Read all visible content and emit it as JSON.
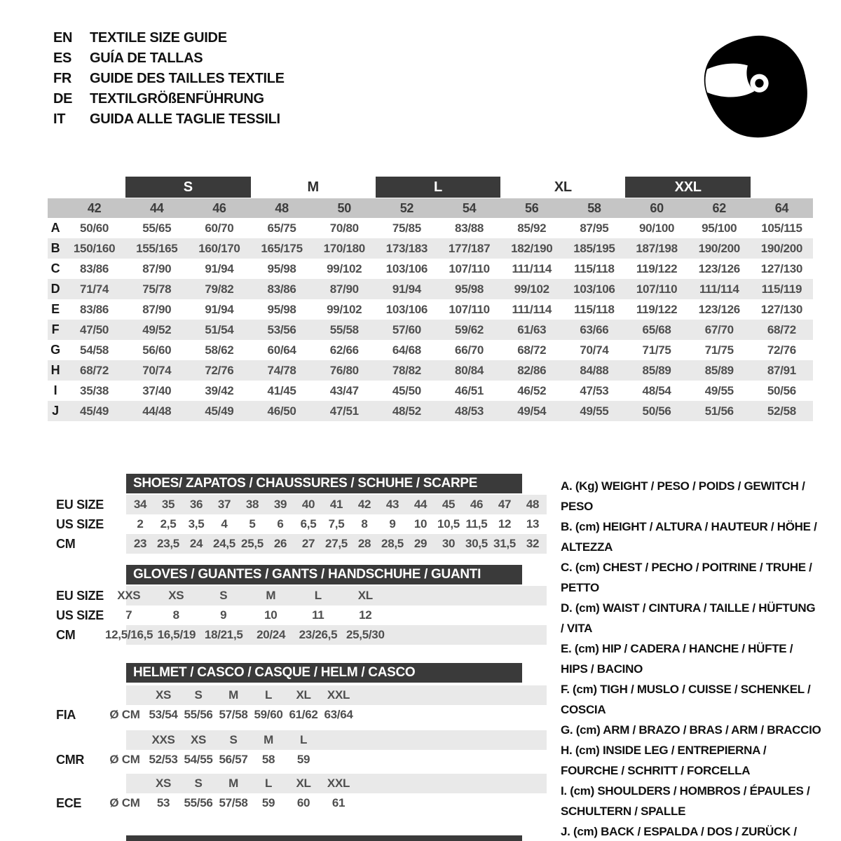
{
  "header": {
    "languages": [
      {
        "code": "EN",
        "title": "TEXTILE SIZE GUIDE"
      },
      {
        "code": "ES",
        "title": "GUÍA DE TALLAS"
      },
      {
        "code": "FR",
        "title": "GUIDE DES TAILLES TEXTILE"
      },
      {
        "code": "DE",
        "title": "TEXTILGRÖßENFÜHRUNG"
      },
      {
        "code": "IT",
        "title": "GUIDA ALLE TAGLIE TESSILI"
      }
    ],
    "helmet_icon": "racing-helmet-icon"
  },
  "colors": {
    "dark": "#3a3a3a",
    "band": "#c5c5c5",
    "stripe": "#e9e9e9",
    "value_text": "#4f4f4f"
  },
  "main_table": {
    "size_groups": [
      {
        "label": "S",
        "boxed": true
      },
      {
        "label": "M",
        "boxed": false
      },
      {
        "label": "L",
        "boxed": true
      },
      {
        "label": "XL",
        "boxed": false
      },
      {
        "label": "XXL",
        "boxed": true
      }
    ],
    "columns": [
      "42",
      "44",
      "46",
      "48",
      "50",
      "52",
      "54",
      "56",
      "58",
      "60",
      "62",
      "64"
    ],
    "rows": [
      {
        "label": "A",
        "values": [
          "50/60",
          "55/65",
          "60/70",
          "65/75",
          "70/80",
          "75/85",
          "83/88",
          "85/92",
          "87/95",
          "90/100",
          "95/100",
          "105/115"
        ]
      },
      {
        "label": "B",
        "values": [
          "150/160",
          "155/165",
          "160/170",
          "165/175",
          "170/180",
          "173/183",
          "177/187",
          "182/190",
          "185/195",
          "187/198",
          "190/200",
          "190/200"
        ]
      },
      {
        "label": "C",
        "values": [
          "83/86",
          "87/90",
          "91/94",
          "95/98",
          "99/102",
          "103/106",
          "107/110",
          "111/114",
          "115/118",
          "119/122",
          "123/126",
          "127/130"
        ]
      },
      {
        "label": "D",
        "values": [
          "71/74",
          "75/78",
          "79/82",
          "83/86",
          "87/90",
          "91/94",
          "95/98",
          "99/102",
          "103/106",
          "107/110",
          "111/114",
          "115/119"
        ]
      },
      {
        "label": "E",
        "values": [
          "83/86",
          "87/90",
          "91/94",
          "95/98",
          "99/102",
          "103/106",
          "107/110",
          "111/114",
          "115/118",
          "119/122",
          "123/126",
          "127/130"
        ]
      },
      {
        "label": "F",
        "values": [
          "47/50",
          "49/52",
          "51/54",
          "53/56",
          "55/58",
          "57/60",
          "59/62",
          "61/63",
          "63/66",
          "65/68",
          "67/70",
          "68/72"
        ]
      },
      {
        "label": "G",
        "values": [
          "54/58",
          "56/60",
          "58/62",
          "60/64",
          "62/66",
          "64/68",
          "66/70",
          "68/72",
          "70/74",
          "71/75",
          "71/75",
          "72/76"
        ]
      },
      {
        "label": "H",
        "values": [
          "68/72",
          "70/74",
          "72/76",
          "74/78",
          "76/80",
          "78/82",
          "80/84",
          "82/86",
          "84/88",
          "85/89",
          "85/89",
          "87/91"
        ]
      },
      {
        "label": "I",
        "values": [
          "35/38",
          "37/40",
          "39/42",
          "41/45",
          "43/47",
          "45/50",
          "46/51",
          "46/52",
          "47/53",
          "48/54",
          "49/55",
          "50/56"
        ]
      },
      {
        "label": "J",
        "values": [
          "45/49",
          "44/48",
          "45/49",
          "46/50",
          "47/51",
          "48/52",
          "48/53",
          "49/54",
          "49/55",
          "50/56",
          "51/56",
          "52/58"
        ]
      }
    ]
  },
  "shoes": {
    "title": "SHOES/ ZAPATOS / CHAUSSURES / SCHUHE / SCARPE",
    "rows": [
      {
        "label": "EU SIZE",
        "striped": true,
        "values": [
          "34",
          "35",
          "36",
          "37",
          "38",
          "39",
          "40",
          "41",
          "42",
          "43",
          "44",
          "45",
          "46",
          "47",
          "48"
        ]
      },
      {
        "label": "US SIZE",
        "striped": false,
        "values": [
          "2",
          "2,5",
          "3,5",
          "4",
          "5",
          "6",
          "6,5",
          "7,5",
          "8",
          "9",
          "10",
          "10,5",
          "11,5",
          "12",
          "13"
        ]
      },
      {
        "label": "CM",
        "striped": true,
        "values": [
          "23",
          "23,5",
          "24",
          "24,5",
          "25,5",
          "26",
          "27",
          "27,5",
          "28",
          "28,5",
          "29",
          "30",
          "30,5",
          "31,5",
          "32"
        ]
      }
    ]
  },
  "gloves": {
    "title": "GLOVES / GUANTES / GANTS / HANDSCHUHE / GUANTI",
    "rows": [
      {
        "label": "EU SIZE",
        "striped": true,
        "values": [
          "XXS",
          "XS",
          "S",
          "M",
          "L",
          "XL"
        ]
      },
      {
        "label": "US SIZE",
        "striped": false,
        "values": [
          "7",
          "8",
          "9",
          "10",
          "11",
          "12"
        ]
      },
      {
        "label": "CM",
        "striped": true,
        "values": [
          "12,5/16,5",
          "16,5/19",
          "18/21,5",
          "20/24",
          "23/26,5",
          "25,5/30"
        ]
      }
    ]
  },
  "helmet": {
    "title": "HELMET / CASCO / CASQUE / HELM / CASCO",
    "sections": [
      {
        "label": "FIA",
        "unit": "Ø CM",
        "sizes": [
          "XS",
          "S",
          "M",
          "L",
          "XL",
          "XXL"
        ],
        "values": [
          "53/54",
          "55/56",
          "57/58",
          "59/60",
          "61/62",
          "63/64"
        ]
      },
      {
        "label": "CMR",
        "unit": "Ø CM",
        "sizes": [
          "XXS",
          "XS",
          "S",
          "M",
          "L"
        ],
        "values": [
          "52/53",
          "54/55",
          "56/57",
          "58",
          "59"
        ]
      },
      {
        "label": "ECE",
        "unit": "Ø CM",
        "sizes": [
          "XS",
          "S",
          "M",
          "L",
          "XL",
          "XXL"
        ],
        "values": [
          "53",
          "55/56",
          "57/58",
          "59",
          "60",
          "61"
        ]
      }
    ]
  },
  "legend": {
    "items": [
      "A. (Kg) WEIGHT / PESO / POIDS / GEWITCH / PESO",
      "B. (cm) HEIGHT / ALTURA / HAUTEUR / HÖHE / ALTEZZA",
      "C. (cm) CHEST / PECHO / POITRINE / TRUHE / PETTO",
      "D. (cm) WAIST / CINTURA / TAILLE / HÜFTUNG / VITA",
      "E. (cm) HIP / CADERA / HANCHE / HÜFTE / HIPS / BACINO",
      "F. (cm) TIGH / MUSLO / CUISSE / SCHENKEL / COSCIA",
      "G. (cm) ARM / BRAZO / BRAS / ARM / BRACCIO",
      "H. (cm) INSIDE LEG / ENTREPIERNA / FOURCHE / SCHRITT / FORCELLA",
      "I. (cm) SHOULDERS / HOMBROS / ÉPAULES / SCHULTERN / SPALLE",
      "J. (cm) BACK / ESPALDA / DOS / ZURÜCK / INDIETRO"
    ]
  },
  "footer": {
    "partial_next_header": true
  }
}
